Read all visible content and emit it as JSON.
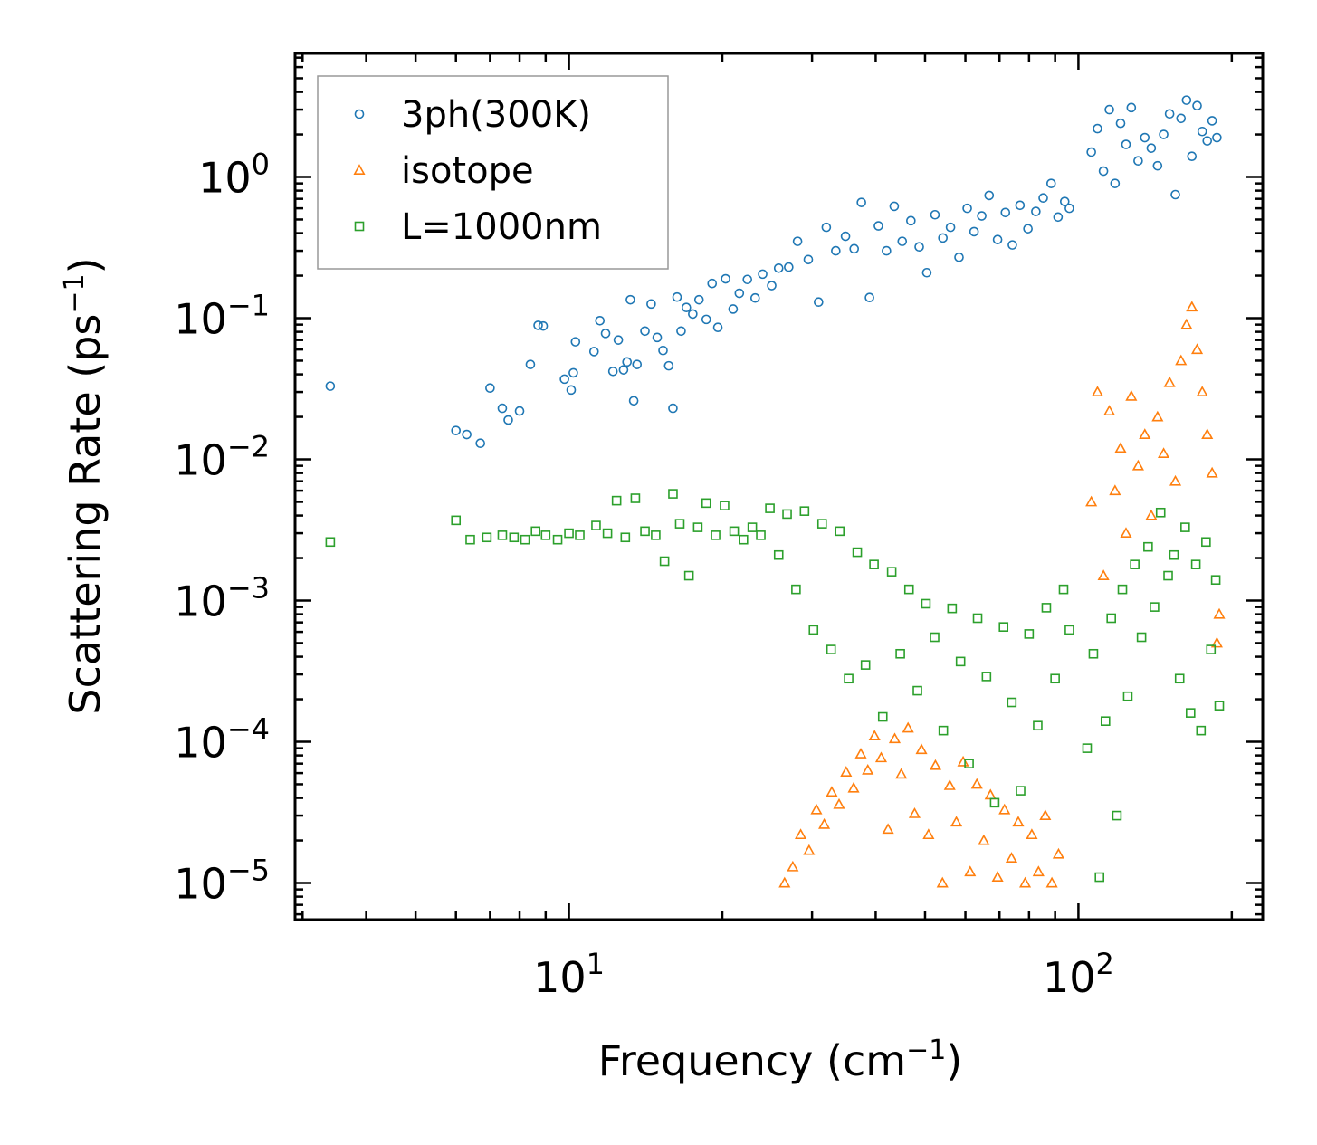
{
  "chart_data": {
    "type": "scatter",
    "title": "",
    "xlabel": "Frequency (cm",
    "xlabel_sup": "−1",
    "xlabel_end": ")",
    "ylabel": "Scattering Rate (ps",
    "ylabel_sup": "−1",
    "ylabel_end": ")",
    "xscale": "log",
    "yscale": "log",
    "xlim": [
      2.9,
      230
    ],
    "ylim": [
      5.5e-06,
      7.5
    ],
    "x_ticks": [
      {
        "value": 10,
        "base": "10",
        "exp": "1"
      },
      {
        "value": 100,
        "base": "10",
        "exp": "2"
      }
    ],
    "y_ticks": [
      {
        "value": 1,
        "base": "10",
        "exp": "0"
      },
      {
        "value": 0.1,
        "base": "10",
        "exp": "−1"
      },
      {
        "value": 0.01,
        "base": "10",
        "exp": "−2"
      },
      {
        "value": 0.001,
        "base": "10",
        "exp": "−3"
      },
      {
        "value": 0.0001,
        "base": "10",
        "exp": "−4"
      },
      {
        "value": 1e-05,
        "base": "10",
        "exp": "−5"
      }
    ],
    "legend_position": "top-left",
    "series": [
      {
        "name": "3ph(300K)",
        "marker": "circle",
        "color": "#1f77b4",
        "points": [
          [
            3.4,
            0.033
          ],
          [
            6.0,
            0.016
          ],
          [
            6.3,
            0.015
          ],
          [
            6.7,
            0.013
          ],
          [
            7.0,
            0.032
          ],
          [
            7.4,
            0.023
          ],
          [
            7.6,
            0.019
          ],
          [
            8.0,
            0.022
          ],
          [
            8.4,
            0.047
          ],
          [
            8.7,
            0.089
          ],
          [
            8.9,
            0.088
          ],
          [
            9.8,
            0.037
          ],
          [
            10.1,
            0.031
          ],
          [
            10.2,
            0.041
          ],
          [
            10.3,
            0.068
          ],
          [
            11.2,
            0.058
          ],
          [
            11.5,
            0.096
          ],
          [
            11.8,
            0.078
          ],
          [
            12.2,
            0.042
          ],
          [
            12.5,
            0.07
          ],
          [
            12.8,
            0.043
          ],
          [
            13.0,
            0.049
          ],
          [
            13.2,
            0.135
          ],
          [
            13.4,
            0.026
          ],
          [
            13.6,
            0.047
          ],
          [
            14.1,
            0.081
          ],
          [
            14.5,
            0.126
          ],
          [
            14.9,
            0.073
          ],
          [
            15.3,
            0.059
          ],
          [
            15.7,
            0.046
          ],
          [
            16.0,
            0.023
          ],
          [
            16.3,
            0.141
          ],
          [
            16.6,
            0.081
          ],
          [
            17.0,
            0.119
          ],
          [
            17.5,
            0.107
          ],
          [
            18.0,
            0.135
          ],
          [
            18.6,
            0.098
          ],
          [
            19.1,
            0.176
          ],
          [
            19.6,
            0.086
          ],
          [
            20.3,
            0.19
          ],
          [
            21.0,
            0.116
          ],
          [
            21.6,
            0.15
          ],
          [
            22.4,
            0.188
          ],
          [
            23.2,
            0.139
          ],
          [
            24.0,
            0.205
          ],
          [
            25.0,
            0.17
          ],
          [
            25.8,
            0.226
          ],
          [
            27.0,
            0.23
          ],
          [
            28.1,
            0.35
          ],
          [
            29.5,
            0.26
          ],
          [
            30.9,
            0.13
          ],
          [
            32.0,
            0.44
          ],
          [
            33.4,
            0.3
          ],
          [
            34.9,
            0.38
          ],
          [
            36.3,
            0.31
          ],
          [
            37.5,
            0.66
          ],
          [
            38.9,
            0.14
          ],
          [
            40.5,
            0.45
          ],
          [
            42.0,
            0.3
          ],
          [
            43.5,
            0.62
          ],
          [
            45.1,
            0.35
          ],
          [
            46.9,
            0.49
          ],
          [
            48.7,
            0.32
          ],
          [
            50.4,
            0.21
          ],
          [
            52.3,
            0.54
          ],
          [
            54.2,
            0.37
          ],
          [
            56.1,
            0.44
          ],
          [
            58.3,
            0.27
          ],
          [
            60.5,
            0.6
          ],
          [
            62.4,
            0.41
          ],
          [
            64.6,
            0.53
          ],
          [
            66.8,
            0.74
          ],
          [
            69.4,
            0.36
          ],
          [
            71.9,
            0.56
          ],
          [
            74.2,
            0.33
          ],
          [
            76.8,
            0.63
          ],
          [
            79.6,
            0.43
          ],
          [
            82.5,
            0.57
          ],
          [
            85.3,
            0.71
          ],
          [
            88.4,
            0.9
          ],
          [
            91.2,
            0.52
          ],
          [
            94.0,
            0.67
          ],
          [
            96.0,
            0.6
          ],
          [
            106,
            1.5
          ],
          [
            109,
            2.2
          ],
          [
            112,
            1.1
          ],
          [
            115,
            3.0
          ],
          [
            118,
            0.9
          ],
          [
            121,
            2.4
          ],
          [
            124,
            1.7
          ],
          [
            127,
            3.1
          ],
          [
            131,
            1.3
          ],
          [
            135,
            1.9
          ],
          [
            139,
            1.6
          ],
          [
            143,
            1.2
          ],
          [
            147,
            2.0
          ],
          [
            151,
            2.8
          ],
          [
            155,
            0.75
          ],
          [
            159,
            2.6
          ],
          [
            163,
            3.5
          ],
          [
            167,
            1.4
          ],
          [
            171,
            3.2
          ],
          [
            175,
            2.1
          ],
          [
            179,
            1.8
          ],
          [
            183,
            2.5
          ],
          [
            187,
            1.9
          ]
        ]
      },
      {
        "name": "isotope",
        "marker": "triangle",
        "color": "#ff7f0e",
        "points": [
          [
            26.5,
            1e-05
          ],
          [
            27.5,
            1.3e-05
          ],
          [
            28.5,
            2.2e-05
          ],
          [
            29.6,
            1.7e-05
          ],
          [
            30.6,
            3.3e-05
          ],
          [
            31.7,
            2.6e-05
          ],
          [
            32.8,
            4.4e-05
          ],
          [
            33.9,
            3.6e-05
          ],
          [
            35.0,
            6.1e-05
          ],
          [
            36.2,
            4.7e-05
          ],
          [
            37.4,
            8.2e-05
          ],
          [
            38.6,
            6.3e-05
          ],
          [
            39.8,
            0.00011
          ],
          [
            41.0,
            7.7e-05
          ],
          [
            42.3,
            2.4e-05
          ],
          [
            43.6,
            0.000105
          ],
          [
            44.9,
            5.9e-05
          ],
          [
            46.3,
            0.000125
          ],
          [
            47.7,
            3.1e-05
          ],
          [
            49.2,
            8.8e-05
          ],
          [
            50.8,
            2.2e-05
          ],
          [
            52.4,
            6.8e-05
          ],
          [
            54.1,
            1e-05
          ],
          [
            55.9,
            4.9e-05
          ],
          [
            57.6,
            2.7e-05
          ],
          [
            59.4,
            7.2e-05
          ],
          [
            61.3,
            1.2e-05
          ],
          [
            63.2,
            5e-05
          ],
          [
            65.2,
            2e-05
          ],
          [
            67.2,
            4.2e-05
          ],
          [
            69.4,
            1.1e-05
          ],
          [
            71.6,
            3.3e-05
          ],
          [
            73.9,
            1.5e-05
          ],
          [
            76.2,
            2.7e-05
          ],
          [
            78.6,
            1e-05
          ],
          [
            81.0,
            2.2e-05
          ],
          [
            83.5,
            1.2e-05
          ],
          [
            86.1,
            3e-05
          ],
          [
            88.7,
            1e-05
          ],
          [
            91.4,
            1.6e-05
          ],
          [
            106,
            0.005
          ],
          [
            109,
            0.03
          ],
          [
            112,
            0.0015
          ],
          [
            115,
            0.022
          ],
          [
            118,
            0.006
          ],
          [
            121,
            0.012
          ],
          [
            124,
            0.003
          ],
          [
            127,
            0.028
          ],
          [
            131,
            0.009
          ],
          [
            135,
            0.015
          ],
          [
            139,
            0.004
          ],
          [
            143,
            0.02
          ],
          [
            147,
            0.011
          ],
          [
            151,
            0.035
          ],
          [
            155,
            0.007
          ],
          [
            159,
            0.05
          ],
          [
            163,
            0.09
          ],
          [
            167,
            0.12
          ],
          [
            171,
            0.06
          ],
          [
            175,
            0.03
          ],
          [
            179,
            0.015
          ],
          [
            183,
            0.008
          ],
          [
            187,
            0.0005
          ],
          [
            189,
            0.0008
          ]
        ]
      },
      {
        "name": "L=1000nm",
        "marker": "square",
        "color": "#2ca02c",
        "points": [
          [
            3.4,
            0.0026
          ],
          [
            6.0,
            0.0037
          ],
          [
            6.4,
            0.0027
          ],
          [
            6.9,
            0.0028
          ],
          [
            7.4,
            0.0029
          ],
          [
            7.8,
            0.0028
          ],
          [
            8.2,
            0.0027
          ],
          [
            8.6,
            0.0031
          ],
          [
            9.0,
            0.0029
          ],
          [
            9.5,
            0.0027
          ],
          [
            10.0,
            0.003
          ],
          [
            10.5,
            0.0029
          ],
          [
            11.3,
            0.0034
          ],
          [
            11.9,
            0.003
          ],
          [
            12.4,
            0.0051
          ],
          [
            12.9,
            0.0028
          ],
          [
            13.5,
            0.0053
          ],
          [
            14.1,
            0.0031
          ],
          [
            14.8,
            0.0029
          ],
          [
            15.4,
            0.0019
          ],
          [
            16.0,
            0.0057
          ],
          [
            16.5,
            0.0035
          ],
          [
            17.2,
            0.0015
          ],
          [
            17.9,
            0.0033
          ],
          [
            18.6,
            0.0049
          ],
          [
            19.4,
            0.0029
          ],
          [
            20.2,
            0.0047
          ],
          [
            21.1,
            0.0031
          ],
          [
            22.0,
            0.0027
          ],
          [
            22.9,
            0.0033
          ],
          [
            23.8,
            0.0029
          ],
          [
            24.8,
            0.0045
          ],
          [
            25.8,
            0.0021
          ],
          [
            26.8,
            0.0041
          ],
          [
            27.9,
            0.0012
          ],
          [
            29.0,
            0.0043
          ],
          [
            30.2,
            0.00062
          ],
          [
            31.4,
            0.0035
          ],
          [
            32.7,
            0.00045
          ],
          [
            34.0,
            0.0031
          ],
          [
            35.4,
            0.00028
          ],
          [
            36.8,
            0.0022
          ],
          [
            38.2,
            0.00035
          ],
          [
            39.7,
            0.0018
          ],
          [
            41.3,
            0.00015
          ],
          [
            43.0,
            0.0016
          ],
          [
            44.7,
            0.00042
          ],
          [
            46.5,
            0.0012
          ],
          [
            48.3,
            0.00023
          ],
          [
            50.2,
            0.00095
          ],
          [
            52.2,
            0.00055
          ],
          [
            54.3,
            0.00012
          ],
          [
            56.5,
            0.00088
          ],
          [
            58.7,
            0.00037
          ],
          [
            61.0,
            7e-05
          ],
          [
            63.4,
            0.00075
          ],
          [
            66.0,
            0.00029
          ],
          [
            68.5,
            3.7e-05
          ],
          [
            71.3,
            0.00065
          ],
          [
            74.0,
            0.00019
          ],
          [
            77.0,
            4.5e-05
          ],
          [
            80.0,
            0.00058
          ],
          [
            83.2,
            0.00013
          ],
          [
            86.5,
            0.00089
          ],
          [
            90.0,
            0.00028
          ],
          [
            93.5,
            0.0012
          ],
          [
            96.0,
            0.00062
          ],
          [
            104,
            9e-05
          ],
          [
            107,
            0.00042
          ],
          [
            110,
            1.1e-05
          ],
          [
            113,
            0.00014
          ],
          [
            116,
            0.00075
          ],
          [
            119,
            3e-05
          ],
          [
            122,
            0.0012
          ],
          [
            125,
            0.00021
          ],
          [
            129,
            0.0018
          ],
          [
            133,
            0.00055
          ],
          [
            137,
            0.0024
          ],
          [
            141,
            0.0009
          ],
          [
            145,
            0.0042
          ],
          [
            150,
            0.0015
          ],
          [
            154,
            0.0021
          ],
          [
            158,
            0.00028
          ],
          [
            162,
            0.0033
          ],
          [
            166,
            0.00016
          ],
          [
            170,
            0.0018
          ],
          [
            174,
            0.00012
          ],
          [
            178,
            0.0026
          ],
          [
            182,
            0.00045
          ],
          [
            186,
            0.0014
          ],
          [
            189,
            0.00018
          ]
        ]
      }
    ]
  }
}
